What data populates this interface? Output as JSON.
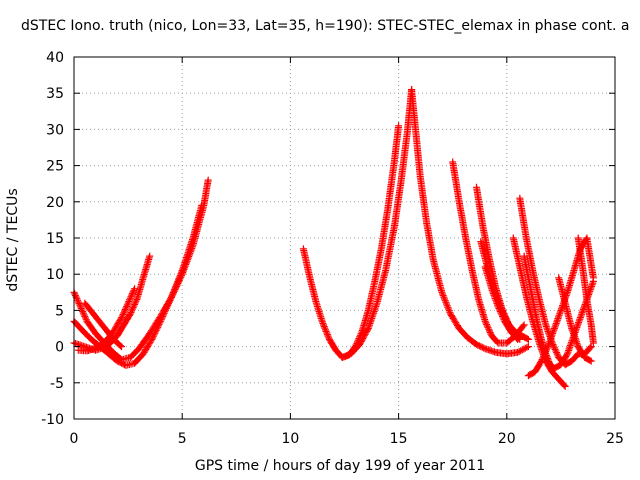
{
  "chart_data": {
    "type": "scatter",
    "title": "dSTEC Iono. truth (nico, Lon=33, Lat=35, h=190): STEC-STEC_elemax in phase cont. a",
    "xlabel": "GPS time / hours of day 199 of year 2011",
    "ylabel": "dSTEC  / TECUs",
    "xlim": [
      0,
      25
    ],
    "ylim": [
      -10,
      40
    ],
    "x_ticks": [
      "0",
      "5",
      "10",
      "15",
      "20",
      "25"
    ],
    "y_ticks": [
      "-10",
      "-5",
      "0",
      "5",
      "10",
      "15",
      "20",
      "25",
      "30",
      "35",
      "40"
    ],
    "grid": true,
    "marker": "+",
    "series_color": "#ff0000",
    "series": [
      {
        "x": [
          0.0,
          0.3,
          0.6,
          1.0,
          1.4,
          1.8,
          2.2,
          2.6,
          3.0,
          3.5,
          4.0,
          4.5,
          5.0,
          5.5,
          6.0,
          6.2
        ],
        "y": [
          7.5,
          5.5,
          3.5,
          1.8,
          0.5,
          -0.8,
          -1.8,
          -1.5,
          -0.3,
          1.8,
          4.2,
          6.8,
          10.0,
          14.0,
          19.5,
          23.0
        ]
      },
      {
        "x": [
          0.0,
          0.4,
          0.8,
          1.2,
          1.6,
          2.0,
          2.4,
          2.8,
          3.2,
          3.6,
          4.0,
          4.5,
          5.0,
          5.5,
          5.9
        ],
        "y": [
          3.5,
          2.2,
          1.0,
          0.0,
          -1.0,
          -2.0,
          -2.6,
          -2.3,
          -1.0,
          1.0,
          3.5,
          6.8,
          10.5,
          15.0,
          19.5
        ]
      },
      {
        "x": [
          0.0,
          0.5,
          1.0,
          1.5,
          2.0,
          2.3,
          2.6,
          2.9,
          3.2,
          3.5
        ],
        "y": [
          0.5,
          0.0,
          -0.5,
          0.0,
          1.5,
          3.0,
          4.5,
          6.5,
          9.5,
          12.5
        ]
      },
      {
        "x": [
          0.2,
          0.6,
          1.0,
          1.4,
          1.8,
          2.2,
          2.5,
          2.8
        ],
        "y": [
          -0.5,
          -0.6,
          -0.2,
          0.5,
          2.0,
          4.0,
          6.0,
          8.0
        ]
      },
      {
        "x": [
          0.5,
          0.9,
          1.3,
          1.7,
          2.0,
          2.2
        ],
        "y": [
          6.0,
          4.5,
          3.0,
          1.5,
          0.5,
          0.0
        ]
      },
      {
        "x": [
          10.6,
          10.9,
          11.2,
          11.5,
          11.8,
          12.1,
          12.4,
          12.7,
          13.0,
          13.3,
          13.6,
          13.9,
          14.2,
          14.5,
          14.8,
          15.0
        ],
        "y": [
          13.5,
          9.5,
          6.0,
          3.2,
          1.0,
          -0.5,
          -1.5,
          -1.2,
          0.0,
          2.0,
          5.0,
          9.0,
          13.5,
          19.0,
          25.5,
          30.5
        ]
      },
      {
        "x": [
          12.4,
          12.8,
          13.2,
          13.6,
          14.0,
          14.4,
          14.8,
          15.1,
          15.4,
          15.6
        ],
        "y": [
          -1.5,
          -1.0,
          0.3,
          2.5,
          6.0,
          10.5,
          16.5,
          22.5,
          29.5,
          35.5
        ]
      },
      {
        "x": [
          15.6,
          15.8,
          16.0,
          16.3,
          16.6,
          17.0,
          17.4,
          17.8,
          18.2,
          18.6,
          19.0,
          19.5,
          20.0,
          20.5,
          21.0
        ],
        "y": [
          35.5,
          29.5,
          23.5,
          17.0,
          12.0,
          7.5,
          4.5,
          2.5,
          1.2,
          0.3,
          -0.3,
          -0.8,
          -1.0,
          -0.8,
          0.0
        ]
      },
      {
        "x": [
          17.5,
          17.8,
          18.1,
          18.4,
          18.7,
          19.0,
          19.3,
          19.6,
          20.0,
          20.4,
          20.8
        ],
        "y": [
          25.5,
          20.0,
          15.0,
          10.5,
          6.5,
          3.5,
          1.5,
          0.5,
          0.5,
          1.5,
          3.0
        ]
      },
      {
        "x": [
          18.6,
          18.9,
          19.2,
          19.5,
          19.8,
          20.1,
          20.4,
          20.7,
          21.0
        ],
        "y": [
          22.0,
          16.5,
          12.0,
          8.0,
          5.0,
          3.0,
          2.0,
          1.5,
          1.0
        ]
      },
      {
        "x": [
          18.8,
          19.1,
          19.4,
          19.7,
          20.0,
          20.3,
          20.6
        ],
        "y": [
          14.5,
          11.0,
          8.0,
          5.5,
          3.5,
          2.0,
          1.0
        ]
      },
      {
        "x": [
          19.0,
          19.3,
          19.6,
          19.9,
          20.2,
          20.5
        ],
        "y": [
          11.0,
          8.0,
          5.5,
          3.5,
          2.0,
          1.0
        ]
      },
      {
        "x": [
          20.6,
          20.9,
          21.2,
          21.5,
          21.8,
          22.1,
          22.4,
          22.7,
          23.0,
          23.3,
          23.6,
          23.9
        ],
        "y": [
          20.5,
          15.0,
          10.5,
          6.5,
          3.0,
          0.5,
          -1.5,
          -2.5,
          -2.0,
          -1.0,
          -1.0,
          0.0
        ]
      },
      {
        "x": [
          20.3,
          20.6,
          20.9,
          21.2,
          21.5,
          21.8,
          22.1,
          22.4,
          22.7
        ],
        "y": [
          15.0,
          11.0,
          7.0,
          3.5,
          0.5,
          -2.0,
          -3.5,
          -4.5,
          -5.5
        ]
      },
      {
        "x": [
          20.8,
          21.0,
          21.2,
          21.4,
          21.6,
          21.8,
          22.0,
          22.2
        ],
        "y": [
          12.5,
          9.5,
          6.5,
          3.5,
          1.0,
          -1.0,
          -2.5,
          -3.0
        ]
      },
      {
        "x": [
          21.0,
          21.3,
          21.6,
          21.9,
          22.2,
          22.5,
          22.8,
          23.1,
          23.4,
          23.7,
          24.0
        ],
        "y": [
          -4.0,
          -3.5,
          -2.0,
          0.0,
          2.5,
          5.0,
          7.5,
          10.5,
          13.5,
          15.0,
          9.5
        ]
      },
      {
        "x": [
          22.2,
          22.5,
          22.8,
          23.1,
          23.4,
          23.7,
          24.0
        ],
        "y": [
          -3.0,
          -2.5,
          -1.0,
          1.5,
          4.0,
          6.5,
          9.0
        ]
      },
      {
        "x": [
          22.4,
          22.7,
          23.0,
          23.3,
          23.6,
          23.9
        ],
        "y": [
          9.5,
          6.0,
          2.5,
          0.0,
          -1.5,
          -2.0
        ]
      },
      {
        "x": [
          23.3,
          23.5,
          23.7,
          23.9,
          24.0
        ],
        "y": [
          15.0,
          11.0,
          6.5,
          3.0,
          0.5
        ]
      }
    ]
  }
}
